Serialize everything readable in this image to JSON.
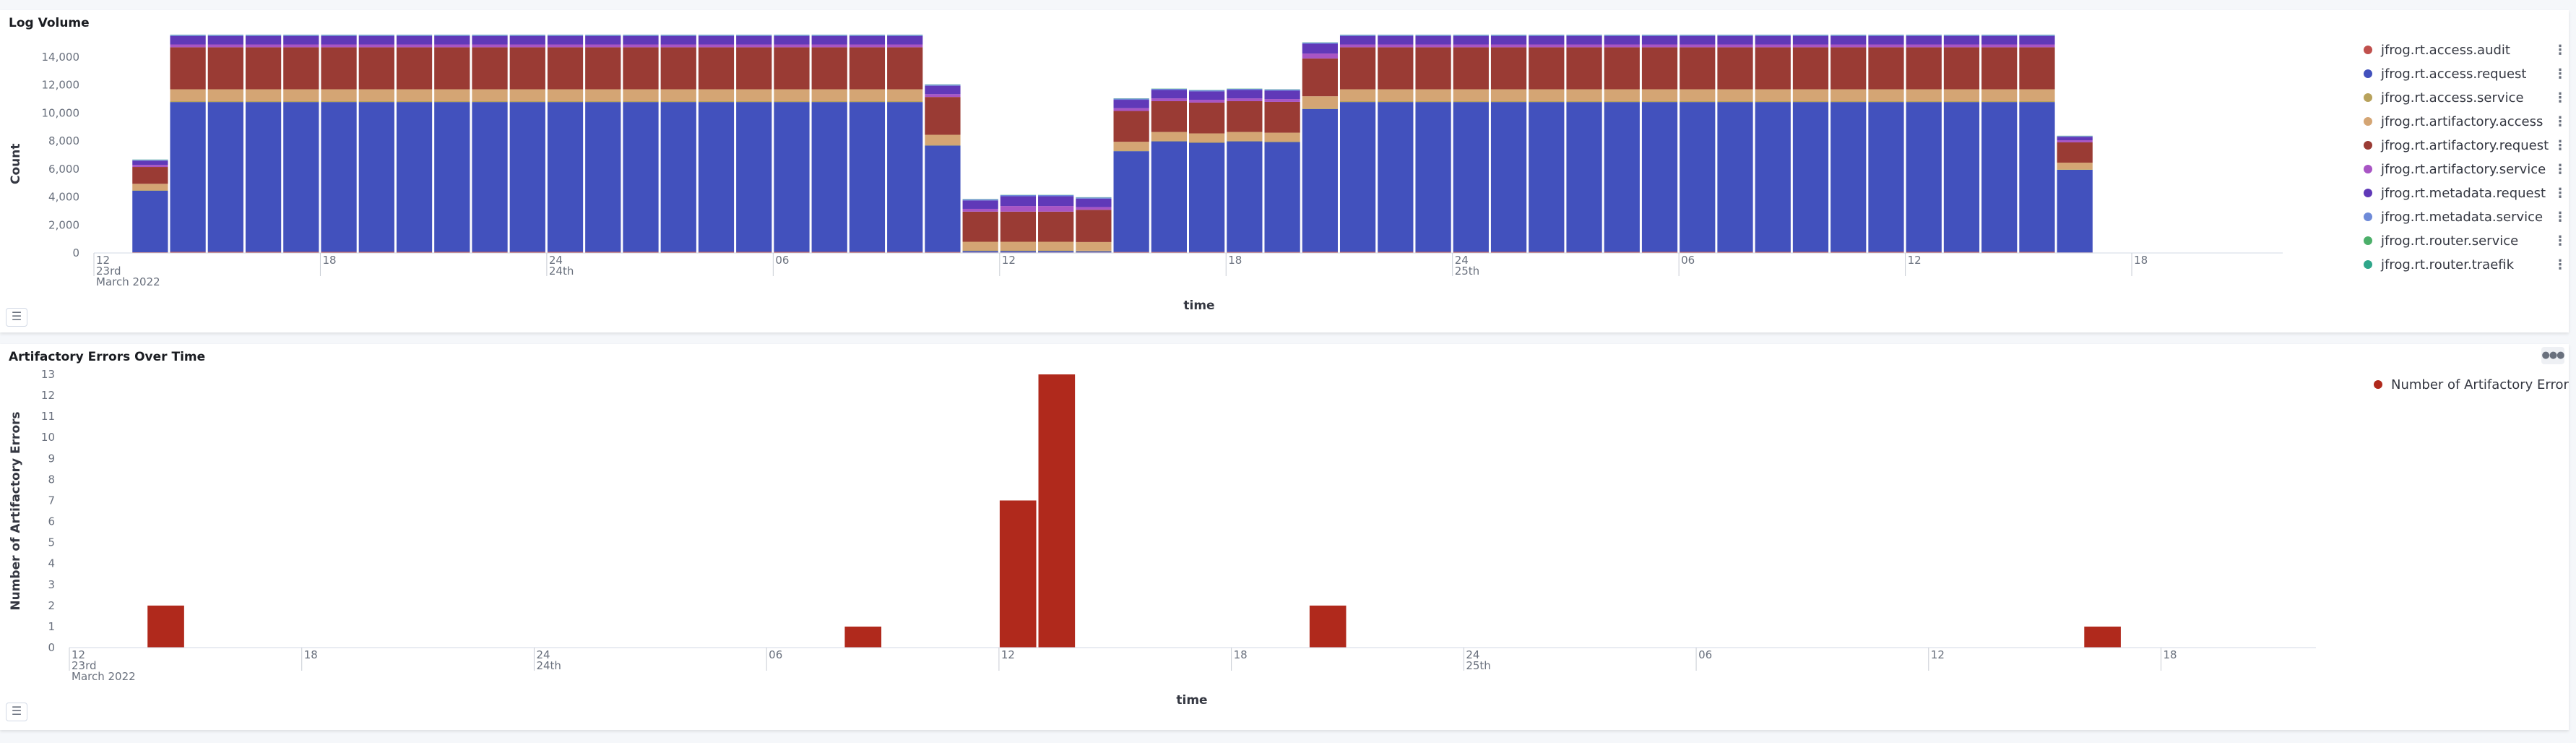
{
  "panels": [
    {
      "title": "Log Volume"
    },
    {
      "title": "Artifactory Errors Over Time"
    }
  ],
  "icons": {
    "legend_toggle": "list-icon",
    "panel_menu": "ellipsis-icon"
  },
  "chart_data": [
    {
      "type": "bar",
      "stacked": true,
      "title": "Log Volume",
      "xlabel": "time",
      "ylabel": "Count",
      "ylim": [
        0,
        16000
      ],
      "yticks": [
        0,
        2000,
        4000,
        6000,
        8000,
        10000,
        12000,
        14000
      ],
      "ytick_labels": [
        "0",
        "2,000",
        "4,000",
        "6,000",
        "8,000",
        "10,000",
        "12,000",
        "14,000"
      ],
      "xticks": [
        {
          "hour": 0,
          "lines": [
            "12",
            "23rd",
            "March 2022"
          ]
        },
        {
          "hour": 6,
          "lines": [
            "18"
          ]
        },
        {
          "hour": 12,
          "lines": [
            "24",
            "24th"
          ]
        },
        {
          "hour": 18,
          "lines": [
            "06"
          ]
        },
        {
          "hour": 24,
          "lines": [
            "12"
          ]
        },
        {
          "hour": 30,
          "lines": [
            "18"
          ]
        },
        {
          "hour": 36,
          "lines": [
            "24",
            "25th"
          ]
        },
        {
          "hour": 42,
          "lines": [
            "06"
          ]
        },
        {
          "hour": 48,
          "lines": [
            "12"
          ]
        },
        {
          "hour": 54,
          "lines": [
            "18"
          ]
        }
      ],
      "bar_start_hour": 1,
      "series": [
        {
          "name": "jfrog.rt.access.audit",
          "color": "#c0504d",
          "values": [
            50,
            80,
            80,
            80,
            80,
            80,
            80,
            80,
            80,
            80,
            80,
            80,
            80,
            80,
            80,
            80,
            80,
            80,
            80,
            80,
            80,
            70,
            40,
            40,
            40,
            40,
            70,
            70,
            70,
            70,
            70,
            80,
            80,
            80,
            80,
            80,
            80,
            80,
            80,
            80,
            80,
            80,
            80,
            80,
            80,
            80,
            80,
            80,
            80,
            80,
            80,
            40
          ]
        },
        {
          "name": "jfrog.rt.access.request",
          "color": "#4251bd",
          "values": [
            4400,
            10700,
            10700,
            10700,
            10700,
            10700,
            10700,
            10700,
            10700,
            10700,
            10700,
            10700,
            10700,
            10700,
            10700,
            10700,
            10700,
            10700,
            10700,
            10700,
            10700,
            7600,
            100,
            100,
            100,
            80,
            7200,
            7900,
            7800,
            7900,
            7850,
            10200,
            10700,
            10700,
            10700,
            10700,
            10700,
            10700,
            10700,
            10700,
            10700,
            10700,
            10700,
            10700,
            10700,
            10700,
            10700,
            10700,
            10700,
            10700,
            10700,
            5900
          ]
        },
        {
          "name": "jfrog.rt.access.service",
          "color": "#b8a25c",
          "values": [
            40,
            60,
            60,
            60,
            60,
            60,
            60,
            60,
            60,
            60,
            60,
            60,
            60,
            60,
            60,
            60,
            60,
            60,
            60,
            60,
            60,
            50,
            40,
            40,
            40,
            40,
            50,
            50,
            50,
            50,
            50,
            60,
            60,
            60,
            60,
            60,
            60,
            60,
            60,
            60,
            60,
            60,
            60,
            60,
            60,
            60,
            60,
            60,
            60,
            60,
            60,
            40
          ]
        },
        {
          "name": "jfrog.rt.artifactory.access",
          "color": "#d4a574",
          "values": [
            450,
            850,
            850,
            850,
            850,
            850,
            850,
            850,
            850,
            850,
            850,
            850,
            850,
            850,
            850,
            850,
            850,
            850,
            850,
            850,
            850,
            720,
            620,
            620,
            620,
            620,
            620,
            620,
            620,
            620,
            620,
            850,
            850,
            850,
            850,
            850,
            850,
            850,
            850,
            850,
            850,
            850,
            850,
            850,
            850,
            850,
            850,
            850,
            850,
            850,
            850,
            470
          ]
        },
        {
          "name": "jfrog.rt.artifactory.request",
          "color": "#9a3b34",
          "values": [
            1200,
            3000,
            3000,
            3000,
            3000,
            3000,
            3000,
            3000,
            3000,
            3000,
            3000,
            3000,
            3000,
            3000,
            3000,
            3000,
            3000,
            3000,
            3000,
            3000,
            3000,
            2700,
            2150,
            2150,
            2150,
            2300,
            2200,
            2200,
            2200,
            2200,
            2200,
            2700,
            3000,
            3000,
            3000,
            3000,
            3000,
            3000,
            3000,
            3000,
            3000,
            3000,
            3000,
            3000,
            3000,
            3000,
            3000,
            3000,
            3000,
            3000,
            3000,
            1450
          ]
        },
        {
          "name": "jfrog.rt.artifactory.service",
          "color": "#a855c4",
          "values": [
            150,
            200,
            200,
            200,
            200,
            200,
            200,
            200,
            200,
            200,
            200,
            200,
            200,
            200,
            200,
            200,
            200,
            200,
            200,
            200,
            200,
            200,
            200,
            400,
            400,
            200,
            200,
            200,
            200,
            200,
            200,
            350,
            200,
            200,
            200,
            200,
            200,
            200,
            200,
            200,
            200,
            200,
            200,
            200,
            200,
            200,
            200,
            200,
            200,
            200,
            200,
            150
          ]
        },
        {
          "name": "jfrog.rt.metadata.request",
          "color": "#6039b8",
          "values": [
            300,
            600,
            600,
            600,
            600,
            600,
            600,
            600,
            600,
            600,
            600,
            600,
            600,
            600,
            600,
            600,
            600,
            600,
            600,
            600,
            600,
            600,
            600,
            700,
            700,
            600,
            600,
            600,
            600,
            600,
            600,
            700,
            600,
            600,
            600,
            600,
            600,
            600,
            600,
            600,
            600,
            600,
            600,
            600,
            600,
            600,
            600,
            600,
            600,
            600,
            600,
            250
          ]
        },
        {
          "name": "jfrog.rt.metadata.service",
          "color": "#6e8ad8",
          "values": [
            60,
            80,
            80,
            80,
            80,
            80,
            80,
            80,
            80,
            80,
            80,
            80,
            80,
            80,
            80,
            80,
            80,
            80,
            80,
            80,
            80,
            80,
            80,
            80,
            80,
            80,
            80,
            80,
            80,
            80,
            80,
            80,
            80,
            80,
            80,
            80,
            80,
            80,
            80,
            80,
            80,
            80,
            80,
            80,
            80,
            80,
            80,
            80,
            80,
            80,
            80,
            50
          ]
        },
        {
          "name": "jfrog.rt.router.service",
          "color": "#4caf6a",
          "values": [
            10,
            10,
            10,
            10,
            10,
            10,
            10,
            10,
            10,
            10,
            10,
            10,
            10,
            10,
            10,
            10,
            10,
            10,
            10,
            10,
            10,
            10,
            10,
            10,
            10,
            10,
            10,
            10,
            10,
            10,
            10,
            10,
            10,
            10,
            10,
            10,
            10,
            10,
            10,
            10,
            10,
            10,
            10,
            10,
            10,
            10,
            10,
            10,
            10,
            10,
            10,
            10
          ]
        },
        {
          "name": "jfrog.rt.router.traefik",
          "color": "#2fa68a",
          "values": [
            10,
            10,
            10,
            10,
            10,
            10,
            10,
            10,
            10,
            10,
            10,
            10,
            10,
            10,
            10,
            10,
            10,
            10,
            10,
            10,
            10,
            10,
            10,
            10,
            10,
            10,
            10,
            10,
            10,
            10,
            10,
            10,
            10,
            10,
            10,
            10,
            10,
            10,
            10,
            10,
            10,
            10,
            10,
            10,
            10,
            10,
            10,
            10,
            10,
            10,
            10,
            10
          ]
        }
      ]
    },
    {
      "type": "bar",
      "title": "Artifactory Errors Over Time",
      "xlabel": "time",
      "ylabel": "Number of Artifactory Errors",
      "ylim": [
        0,
        13
      ],
      "yticks": [
        0,
        1,
        2,
        3,
        4,
        5,
        6,
        7,
        8,
        9,
        10,
        11,
        12,
        13
      ],
      "xticks": [
        {
          "hour": 0,
          "lines": [
            "12",
            "23rd",
            "March 2022"
          ]
        },
        {
          "hour": 6,
          "lines": [
            "18"
          ]
        },
        {
          "hour": 12,
          "lines": [
            "24",
            "24th"
          ]
        },
        {
          "hour": 18,
          "lines": [
            "06"
          ]
        },
        {
          "hour": 24,
          "lines": [
            "12"
          ]
        },
        {
          "hour": 30,
          "lines": [
            "18"
          ]
        },
        {
          "hour": 36,
          "lines": [
            "24",
            "25th"
          ]
        },
        {
          "hour": 42,
          "lines": [
            "06"
          ]
        },
        {
          "hour": 48,
          "lines": [
            "12"
          ]
        },
        {
          "hour": 54,
          "lines": [
            "18"
          ]
        }
      ],
      "series": [
        {
          "name": "Number of Artifactory Errors",
          "color": "#b0291c",
          "points": [
            {
              "hour": 2,
              "value": 2
            },
            {
              "hour": 20,
              "value": 1
            },
            {
              "hour": 24,
              "value": 7
            },
            {
              "hour": 25,
              "value": 13
            },
            {
              "hour": 32,
              "value": 2
            },
            {
              "hour": 52,
              "value": 1
            }
          ]
        }
      ]
    }
  ]
}
